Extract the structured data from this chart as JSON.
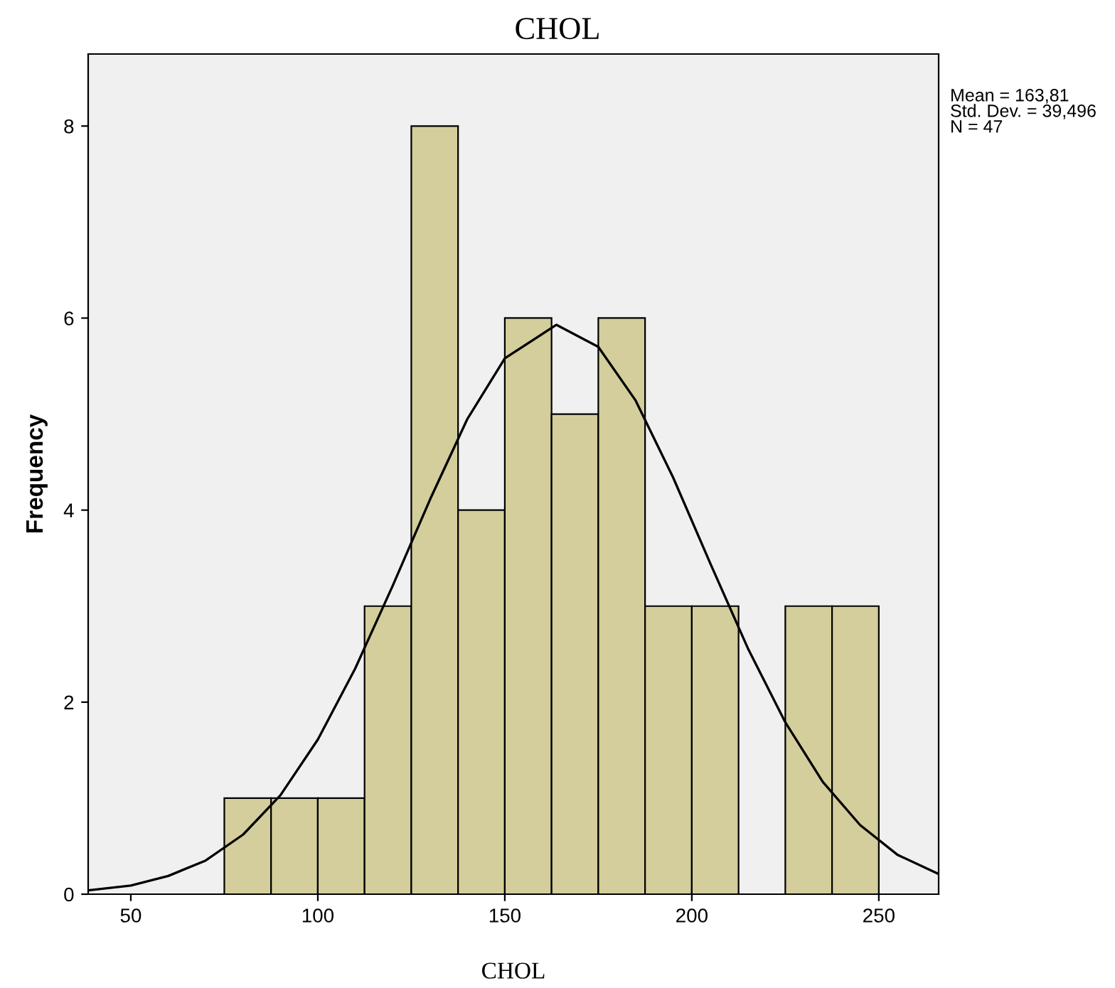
{
  "chart_data": {
    "type": "histogram",
    "title": "CHOL",
    "xlabel": "CHOL",
    "ylabel": "Frequency",
    "bins": [
      75,
      87.5,
      100,
      112.5,
      125,
      137.5,
      150,
      162.5,
      175,
      187.5,
      200,
      212.5,
      225,
      237.5,
      250
    ],
    "values": [
      1,
      1,
      1,
      3,
      8,
      4,
      6,
      5,
      6,
      3,
      3,
      0,
      3,
      3
    ],
    "color": "#d3ce9b",
    "series": [
      {
        "type": "line",
        "color": "#000000",
        "x": [
          38.6,
          50,
          60,
          70,
          80,
          90,
          100,
          110,
          120,
          130,
          140,
          150,
          163.81,
          175,
          185,
          195,
          205,
          215,
          225,
          235,
          245,
          255,
          266
        ],
        "values": [
          0.04,
          0.09,
          0.19,
          0.35,
          0.62,
          1.03,
          1.61,
          2.35,
          3.21,
          4.11,
          4.95,
          5.58,
          5.93,
          5.7,
          5.14,
          4.34,
          3.44,
          2.56,
          1.79,
          1.17,
          0.72,
          0.41,
          0.21
        ]
      }
    ],
    "xlim": [
      38.6,
      266
    ],
    "xticks": [
      50,
      100,
      150,
      200,
      250
    ],
    "ylim": [
      0,
      8.75
    ],
    "yticks": [
      0,
      2,
      4,
      6,
      8
    ],
    "grid": false,
    "annotations": [
      "Mean = 163,81",
      "Std. Dev. = 39,496",
      "N = 47"
    ]
  }
}
